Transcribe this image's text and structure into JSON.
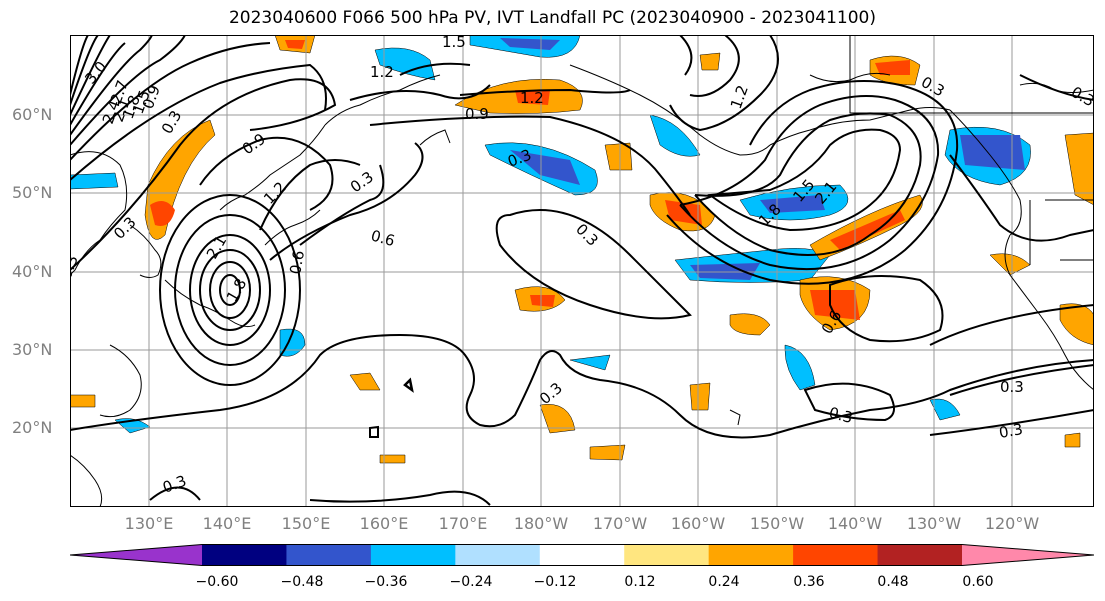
{
  "title": "2023040600 F066 500 hPa PV, IVT Landfall PC (2023040900 - 2023041100)",
  "lat_labels": [
    "60°N",
    "50°N",
    "40°N",
    "30°N",
    "20°N"
  ],
  "lon_labels": [
    "130°E",
    "140°E",
    "150°E",
    "160°E",
    "170°E",
    "180°W",
    "170°W",
    "160°W",
    "150°W",
    "140°W",
    "130°W",
    "120°W"
  ],
  "contour_labels": [
    "3.0",
    "2.7",
    "2.4",
    "2.1",
    "1.8",
    "1.5",
    "0.9",
    "0.3",
    "1.2",
    "1.5",
    "1.2",
    "0.9",
    "0.9",
    "0.3",
    "0.3",
    "0.6",
    "1.2",
    "0.6",
    "1.8",
    "2.1",
    "0.3",
    "0.3",
    "1.8",
    "2.1",
    "1.5",
    "1.2",
    "0.3",
    "0.3",
    "0.3",
    "0.3",
    "0.6",
    "0.3",
    "0.3",
    "0.3",
    "0.3"
  ],
  "colorbar": {
    "ticks": [
      "−0.60",
      "−0.48",
      "−0.36",
      "−0.24",
      "−0.12",
      "0.12",
      "0.24",
      "0.36",
      "0.48",
      "0.60"
    ],
    "colors": [
      "#9933cc",
      "#000080",
      "#3355cc",
      "#00bfff",
      "#b0e0ff",
      "#ffffff",
      "#ffe680",
      "#ffa500",
      "#ff4500",
      "#b22222",
      "#ff88aa"
    ]
  },
  "shading_colors": {
    "neg_light": "#b0e0ff",
    "neg_mid": "#00bfff",
    "neg_dark": "#3355cc",
    "pos_light": "#ffe680",
    "pos_mid": "#ffa500",
    "pos_dark": "#ff4500"
  }
}
